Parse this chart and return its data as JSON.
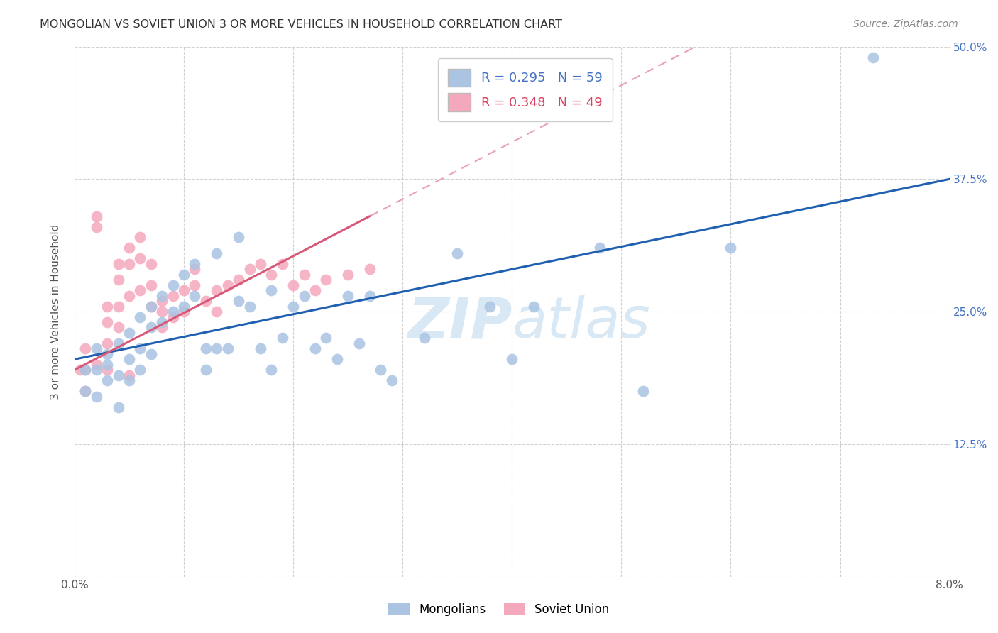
{
  "title": "MONGOLIAN VS SOVIET UNION 3 OR MORE VEHICLES IN HOUSEHOLD CORRELATION CHART",
  "source": "Source: ZipAtlas.com",
  "ylabel": "3 or more Vehicles in Household",
  "xmin": 0.0,
  "xmax": 0.08,
  "ymin": 0.0,
  "ymax": 0.5,
  "xtick_labels": [
    "0.0%",
    "",
    "",
    "",
    "",
    "",
    "",
    "",
    "8.0%"
  ],
  "legend_mongolians": "Mongolians",
  "legend_soviet": "Soviet Union",
  "R_mongolians": 0.295,
  "N_mongolians": 59,
  "R_soviet": 0.348,
  "N_soviet": 49,
  "mongolian_color": "#aac4e2",
  "soviet_color": "#f4a8bc",
  "mongolian_line_color": "#2060b0",
  "soviet_line_color": "#d85878",
  "soviet_dashed_color": "#e8a0b4",
  "background_color": "#ffffff",
  "grid_color": "#cccccc",
  "watermark_color": "#d8e8f4",
  "mongolians_x": [
    0.001,
    0.001,
    0.002,
    0.002,
    0.002,
    0.003,
    0.003,
    0.003,
    0.004,
    0.004,
    0.004,
    0.005,
    0.005,
    0.005,
    0.006,
    0.006,
    0.006,
    0.007,
    0.007,
    0.007,
    0.008,
    0.008,
    0.009,
    0.009,
    0.01,
    0.01,
    0.011,
    0.011,
    0.012,
    0.012,
    0.013,
    0.013,
    0.014,
    0.015,
    0.015,
    0.016,
    0.017,
    0.018,
    0.018,
    0.019,
    0.02,
    0.021,
    0.022,
    0.023,
    0.024,
    0.025,
    0.026,
    0.027,
    0.028,
    0.029,
    0.032,
    0.035,
    0.038,
    0.04,
    0.042,
    0.048,
    0.052,
    0.06,
    0.073
  ],
  "mongolians_y": [
    0.195,
    0.175,
    0.215,
    0.195,
    0.17,
    0.21,
    0.2,
    0.185,
    0.22,
    0.19,
    0.16,
    0.23,
    0.205,
    0.185,
    0.245,
    0.215,
    0.195,
    0.255,
    0.235,
    0.21,
    0.265,
    0.24,
    0.275,
    0.25,
    0.285,
    0.255,
    0.295,
    0.265,
    0.215,
    0.195,
    0.305,
    0.215,
    0.215,
    0.32,
    0.26,
    0.255,
    0.215,
    0.27,
    0.195,
    0.225,
    0.255,
    0.265,
    0.215,
    0.225,
    0.205,
    0.265,
    0.22,
    0.265,
    0.195,
    0.185,
    0.225,
    0.305,
    0.255,
    0.205,
    0.255,
    0.31,
    0.175,
    0.31,
    0.49
  ],
  "soviet_x": [
    0.0005,
    0.001,
    0.001,
    0.001,
    0.002,
    0.002,
    0.002,
    0.003,
    0.003,
    0.003,
    0.003,
    0.004,
    0.004,
    0.004,
    0.004,
    0.005,
    0.005,
    0.005,
    0.005,
    0.006,
    0.006,
    0.006,
    0.007,
    0.007,
    0.007,
    0.008,
    0.008,
    0.008,
    0.009,
    0.009,
    0.01,
    0.01,
    0.011,
    0.011,
    0.012,
    0.013,
    0.013,
    0.014,
    0.015,
    0.016,
    0.017,
    0.018,
    0.019,
    0.02,
    0.021,
    0.022,
    0.023,
    0.025,
    0.027
  ],
  "soviet_y": [
    0.195,
    0.215,
    0.195,
    0.175,
    0.34,
    0.33,
    0.2,
    0.255,
    0.24,
    0.22,
    0.195,
    0.295,
    0.28,
    0.255,
    0.235,
    0.31,
    0.295,
    0.265,
    0.19,
    0.32,
    0.3,
    0.27,
    0.295,
    0.275,
    0.255,
    0.26,
    0.25,
    0.235,
    0.265,
    0.245,
    0.27,
    0.25,
    0.29,
    0.275,
    0.26,
    0.27,
    0.25,
    0.275,
    0.28,
    0.29,
    0.295,
    0.285,
    0.295,
    0.275,
    0.285,
    0.27,
    0.28,
    0.285,
    0.29
  ]
}
